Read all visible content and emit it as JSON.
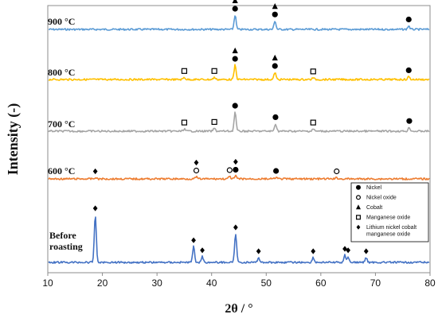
{
  "chart_data": {
    "type": "line",
    "xlabel": "2θ / °",
    "ylabel": "Intensity (-)",
    "xlim": [
      10,
      80
    ],
    "xticks": [
      10,
      20,
      30,
      40,
      50,
      60,
      70,
      80
    ],
    "series": [
      {
        "name": "900 °C",
        "color": "#5b9bd5",
        "label_lines": [
          "900 °C"
        ],
        "peaks": [
          {
            "x": 44.3,
            "h": 1.0
          },
          {
            "x": 51.6,
            "h": 0.6
          },
          {
            "x": 76.1,
            "h": 0.25
          }
        ],
        "markers": [
          {
            "x": 44.3,
            "symbols": [
              "cobalt",
              "nickel"
            ]
          },
          {
            "x": 51.6,
            "symbols": [
              "cobalt",
              "nickel"
            ]
          },
          {
            "x": 76.1,
            "symbols": [
              "nickel"
            ]
          }
        ]
      },
      {
        "name": "800 °C",
        "color": "#ffc000",
        "label_lines": [
          "800 °C"
        ],
        "peaks": [
          {
            "x": 35.0,
            "h": 0.15
          },
          {
            "x": 40.5,
            "h": 0.15
          },
          {
            "x": 44.3,
            "h": 1.0
          },
          {
            "x": 51.6,
            "h": 0.5
          },
          {
            "x": 58.6,
            "h": 0.12
          },
          {
            "x": 76.1,
            "h": 0.2
          }
        ],
        "markers": [
          {
            "x": 35.0,
            "symbols": [
              "manganese_oxide"
            ]
          },
          {
            "x": 40.5,
            "symbols": [
              "manganese_oxide"
            ]
          },
          {
            "x": 44.3,
            "symbols": [
              "cobalt",
              "nickel"
            ]
          },
          {
            "x": 51.6,
            "symbols": [
              "cobalt",
              "nickel"
            ]
          },
          {
            "x": 58.6,
            "symbols": [
              "manganese_oxide"
            ]
          },
          {
            "x": 76.1,
            "symbols": [
              "nickel"
            ]
          }
        ]
      },
      {
        "name": "700 °C",
        "color": "#a5a5a5",
        "label_lines": [
          "700 °C"
        ],
        "peaks": [
          {
            "x": 35.0,
            "h": 0.12
          },
          {
            "x": 40.5,
            "h": 0.15
          },
          {
            "x": 44.3,
            "h": 1.0
          },
          {
            "x": 51.7,
            "h": 0.4
          },
          {
            "x": 58.6,
            "h": 0.12
          },
          {
            "x": 76.2,
            "h": 0.2
          }
        ],
        "markers": [
          {
            "x": 35.0,
            "symbols": [
              "manganese_oxide"
            ]
          },
          {
            "x": 40.5,
            "symbols": [
              "manganese_oxide"
            ]
          },
          {
            "x": 44.3,
            "symbols": [
              "nickel"
            ]
          },
          {
            "x": 51.7,
            "symbols": [
              "nickel"
            ]
          },
          {
            "x": 58.6,
            "symbols": [
              "manganese_oxide"
            ]
          },
          {
            "x": 76.2,
            "symbols": [
              "nickel"
            ]
          }
        ]
      },
      {
        "name": "600 °C",
        "color": "#ed7d31",
        "label_lines": [
          "600 °C"
        ],
        "peaks": [
          {
            "x": 18.7,
            "h": 0.15
          },
          {
            "x": 37.2,
            "h": 0.25
          },
          {
            "x": 43.3,
            "h": 0.3
          },
          {
            "x": 44.4,
            "h": 0.35
          },
          {
            "x": 51.8,
            "h": 0.2
          },
          {
            "x": 62.9,
            "h": 0.15
          }
        ],
        "markers": [
          {
            "x": 18.7,
            "symbols": [
              "lnco"
            ]
          },
          {
            "x": 37.2,
            "symbols": [
              "lnco",
              "nickel_oxide"
            ]
          },
          {
            "x": 43.3,
            "symbols": [
              "nickel_oxide"
            ]
          },
          {
            "x": 44.4,
            "symbols": [
              "lnco",
              "nickel"
            ]
          },
          {
            "x": 51.8,
            "symbols": [
              "nickel"
            ]
          },
          {
            "x": 62.9,
            "symbols": [
              "nickel_oxide"
            ]
          }
        ]
      },
      {
        "name": "Before roasting",
        "color": "#4472c4",
        "label_lines": [
          "Before",
          "roasting"
        ],
        "peaks": [
          {
            "x": 18.7,
            "h": 1.0
          },
          {
            "x": 36.7,
            "h": 0.33
          },
          {
            "x": 38.3,
            "h": 0.12
          },
          {
            "x": 44.4,
            "h": 0.6
          },
          {
            "x": 48.6,
            "h": 0.1
          },
          {
            "x": 58.6,
            "h": 0.1
          },
          {
            "x": 64.4,
            "h": 0.15
          },
          {
            "x": 65.0,
            "h": 0.12
          },
          {
            "x": 68.3,
            "h": 0.1
          }
        ],
        "markers": [
          {
            "x": 18.7,
            "symbols": [
              "lnco"
            ]
          },
          {
            "x": 36.7,
            "symbols": [
              "lnco"
            ]
          },
          {
            "x": 38.3,
            "symbols": [
              "lnco"
            ]
          },
          {
            "x": 44.4,
            "symbols": [
              "lnco"
            ]
          },
          {
            "x": 48.6,
            "symbols": [
              "lnco"
            ]
          },
          {
            "x": 58.6,
            "symbols": [
              "lnco"
            ]
          },
          {
            "x": 64.4,
            "symbols": [
              "lnco"
            ]
          },
          {
            "x": 65.0,
            "symbols": [
              "lnco"
            ]
          },
          {
            "x": 68.3,
            "symbols": [
              "lnco"
            ]
          }
        ]
      }
    ],
    "legend": {
      "placement": "lower-right",
      "entries": [
        {
          "key": "nickel",
          "symbol": "filled-circle",
          "label_lines": [
            "Nickel"
          ]
        },
        {
          "key": "nickel_oxide",
          "symbol": "open-circle",
          "label_lines": [
            "Nickel oxide"
          ]
        },
        {
          "key": "cobalt",
          "symbol": "filled-triangle",
          "label_lines": [
            "Cobalt"
          ]
        },
        {
          "key": "manganese_oxide",
          "symbol": "open-square",
          "label_lines": [
            "Manganese oxide"
          ]
        },
        {
          "key": "lnco",
          "symbol": "filled-diamond",
          "label_lines": [
            "Lithium nickel cobalt",
            "manganese oxide"
          ]
        }
      ]
    }
  }
}
